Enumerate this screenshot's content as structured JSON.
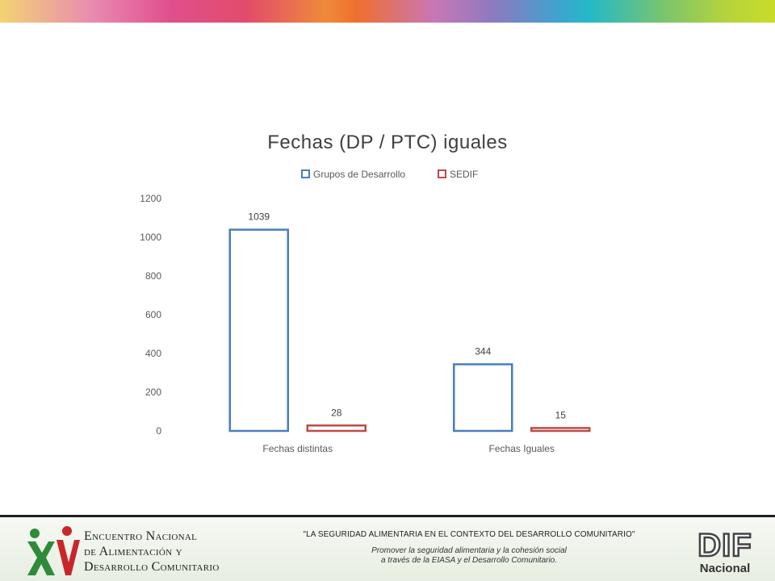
{
  "chart_data": {
    "type": "bar",
    "title": "Fechas (DP / PTC) iguales",
    "categories": [
      "Fechas distintas",
      "Fechas Iguales"
    ],
    "series": [
      {
        "name": "Grupos de Desarrollo",
        "values": [
          1039,
          344
        ],
        "color": "#4a7ebb"
      },
      {
        "name": "SEDIF",
        "values": [
          28,
          15
        ],
        "color": "#be4b48"
      }
    ],
    "ylim": [
      0,
      1200
    ],
    "yticks": [
      0,
      200,
      400,
      600,
      800,
      1000,
      1200
    ],
    "legend": "top",
    "grid": false
  },
  "footer": {
    "event_title": [
      "Encuentro Nacional",
      "de Alimentación y",
      "Desarrollo Comunitario"
    ],
    "slogan": "\"LA SEGURIDAD ALIMENTARIA EN EL CONTEXTO DEL DESARROLLO COMUNITARIO\"",
    "subslogan": [
      "Promover la seguridad alimentaria y la cohesión social",
      "a través de la EIASA y el Desarrollo Comunitario."
    ],
    "logo_text": "XV",
    "dif_logo_text": "DIF",
    "dif_logo_subtext": "Nacional",
    "colors": {
      "logo_green": "#2e8b3a",
      "logo_red": "#c8262b"
    }
  }
}
